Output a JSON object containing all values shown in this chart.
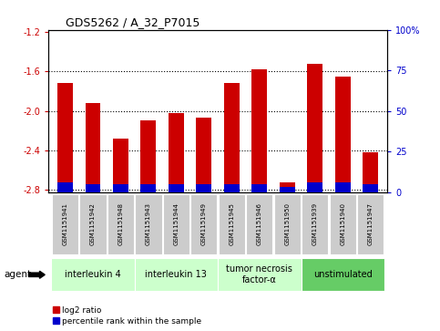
{
  "title": "GDS5262 / A_32_P7015",
  "samples": [
    "GSM1151941",
    "GSM1151942",
    "GSM1151948",
    "GSM1151943",
    "GSM1151944",
    "GSM1151949",
    "GSM1151945",
    "GSM1151946",
    "GSM1151950",
    "GSM1151939",
    "GSM1151940",
    "GSM1151947"
  ],
  "log2_ratio": [
    -1.72,
    -1.92,
    -2.28,
    -2.1,
    -2.02,
    -2.07,
    -1.72,
    -1.58,
    -2.72,
    -1.52,
    -1.65,
    -2.42
  ],
  "percentile": [
    6,
    5,
    5,
    5,
    5,
    5,
    5,
    5,
    3,
    6,
    6,
    5
  ],
  "bar_bottom": -2.82,
  "ylim_min": -2.82,
  "ylim_max": -1.18,
  "yticks": [
    -2.8,
    -2.4,
    -2.0,
    -1.6,
    -1.2
  ],
  "ytick_labels": [
    "-2.8",
    "-2.4",
    "-2.0",
    "-1.6",
    "-1.2"
  ],
  "y2ticks": [
    0,
    25,
    50,
    75,
    100
  ],
  "y2tick_labels": [
    "0",
    "25",
    "50",
    "75",
    "100%"
  ],
  "groups": [
    {
      "label": "interleukin 4",
      "start": 0,
      "end": 3,
      "color": "#ccffcc"
    },
    {
      "label": "interleukin 13",
      "start": 3,
      "end": 6,
      "color": "#ccffcc"
    },
    {
      "label": "tumor necrosis\nfactor-α",
      "start": 6,
      "end": 9,
      "color": "#ccffcc"
    },
    {
      "label": "unstimulated",
      "start": 9,
      "end": 12,
      "color": "#66cc66"
    }
  ],
  "bar_color": "#cc0000",
  "percentile_color": "#0000cc",
  "bar_width": 0.55,
  "bg_color": "#ffffff",
  "legend_log2_label": "log2 ratio",
  "legend_pct_label": "percentile rank within the sample",
  "agent_label": "agent",
  "left_tick_color": "#cc0000",
  "right_tick_color": "#0000cc",
  "sample_box_color": "#cccccc",
  "title_fontsize": 9,
  "tick_fontsize": 7,
  "sample_fontsize": 5,
  "group_fontsize": 7,
  "legend_fontsize": 6.5
}
